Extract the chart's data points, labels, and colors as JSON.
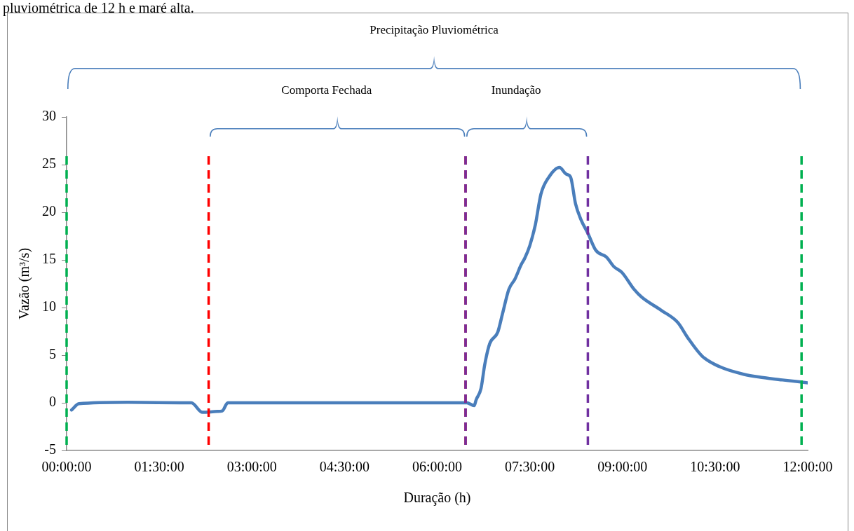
{
  "chart_data": {
    "type": "line",
    "xlabel": "Duração (h)",
    "ylabel": "Vazão (m³/s)",
    "annotations": [
      "pluviométrica de 12 h e maré alta.",
      "Precipitação Pluviométrica",
      "Comporta Fechada",
      "Inundação"
    ],
    "series": [
      {
        "color": "#4a7ebb",
        "x": [
          0.08,
          0.2,
          0.99,
          1.95,
          2.02,
          2.2,
          2.44,
          2.52,
          2.61,
          2.67,
          6.48,
          6.6,
          6.63,
          6.71,
          6.77,
          6.85,
          6.98,
          7.06,
          7.16,
          7.26,
          7.36,
          7.42,
          7.5,
          7.59,
          7.68,
          7.81,
          7.98,
          8.09,
          8.16,
          8.24,
          8.33,
          8.44,
          8.57,
          8.74,
          8.86,
          8.99,
          9.19,
          9.31,
          9.63,
          9.9,
          10.05,
          10.29,
          10.57,
          10.96,
          11.28,
          11.59,
          12.0
        ],
        "values": [
          -0.75,
          -0.1,
          0.05,
          0,
          0,
          -1.0,
          -0.9,
          -0.85,
          0,
          0,
          0,
          -0.3,
          0.3,
          1.5,
          4.0,
          6.2,
          7.4,
          9.4,
          11.9,
          13.0,
          14.5,
          15.2,
          16.5,
          18.7,
          21.9,
          23.7,
          24.7,
          24.0,
          23.7,
          20.9,
          19.2,
          17.8,
          16.0,
          15.3,
          14.3,
          13.7,
          11.9,
          11.1,
          9.7,
          8.4,
          6.9,
          4.9,
          3.8,
          3.0,
          2.65,
          2.4,
          2.1
        ]
      }
    ],
    "xlim": [
      0,
      12
    ],
    "xticks": [
      {
        "value": 0,
        "label": "00:00:00"
      },
      {
        "value": 1.5,
        "label": "01:30:00"
      },
      {
        "value": 3,
        "label": "03:00:00"
      },
      {
        "value": 4.5,
        "label": "04:30:00"
      },
      {
        "value": 6,
        "label": "06:00:00"
      },
      {
        "value": 7.5,
        "label": "07:30:00"
      },
      {
        "value": 9,
        "label": "09:00:00"
      },
      {
        "value": 10.5,
        "label": "10:30:00"
      },
      {
        "value": 12,
        "label": "12:00:00"
      }
    ],
    "ylim": [
      -5,
      30
    ],
    "yticks": [
      -5,
      0,
      5,
      10,
      15,
      20,
      25,
      30
    ],
    "grid": false,
    "legend": false,
    "marker": "none",
    "line_style": "solid",
    "ref_lines": [
      {
        "axis": "x",
        "value": 0,
        "color": "#00b050",
        "line_style": "dashed"
      },
      {
        "axis": "x",
        "value": 11.9,
        "color": "#00b050",
        "line_style": "dashed"
      },
      {
        "axis": "x",
        "value": 2.3,
        "color": "#ff0000",
        "line_style": "dashed"
      },
      {
        "axis": "x",
        "value": 6.46,
        "color": "#ff0000",
        "line_style": "dashed"
      },
      {
        "axis": "x",
        "value": 6.46,
        "color": "#7030a0",
        "line_style": "dashed"
      },
      {
        "axis": "x",
        "value": 8.44,
        "color": "#7030a0",
        "line_style": "dashed"
      }
    ]
  }
}
